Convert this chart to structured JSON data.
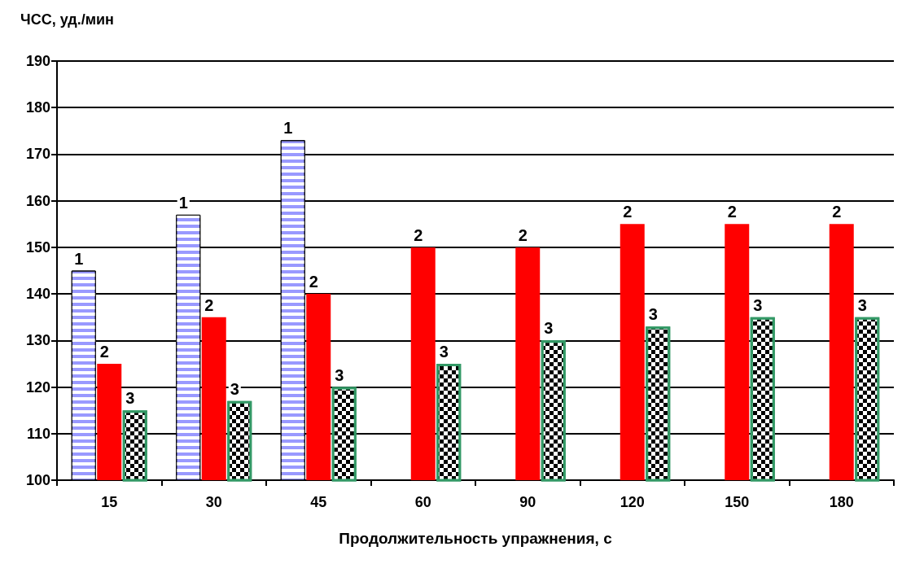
{
  "chart_data": {
    "type": "bar",
    "xlabel": "Продолжительность упражнения, с",
    "ylabel": "ЧСС, уд./мин",
    "categories": [
      "15",
      "30",
      "45",
      "60",
      "90",
      "120",
      "150",
      "180"
    ],
    "series": [
      {
        "name": "1",
        "color": "#9999ff",
        "values": [
          145,
          157,
          173,
          null,
          null,
          null,
          null,
          null
        ]
      },
      {
        "name": "2",
        "color": "#ff0000",
        "values": [
          125,
          135,
          140,
          150,
          150,
          155,
          155,
          155
        ]
      },
      {
        "name": "3",
        "color": "#000000",
        "values": [
          115,
          117,
          120,
          125,
          130,
          133,
          135,
          135
        ]
      }
    ],
    "ylim": [
      100,
      190
    ],
    "yticks": [
      100,
      110,
      120,
      130,
      140,
      150,
      160,
      170,
      180,
      190
    ],
    "grid": "y",
    "legend": false
  }
}
